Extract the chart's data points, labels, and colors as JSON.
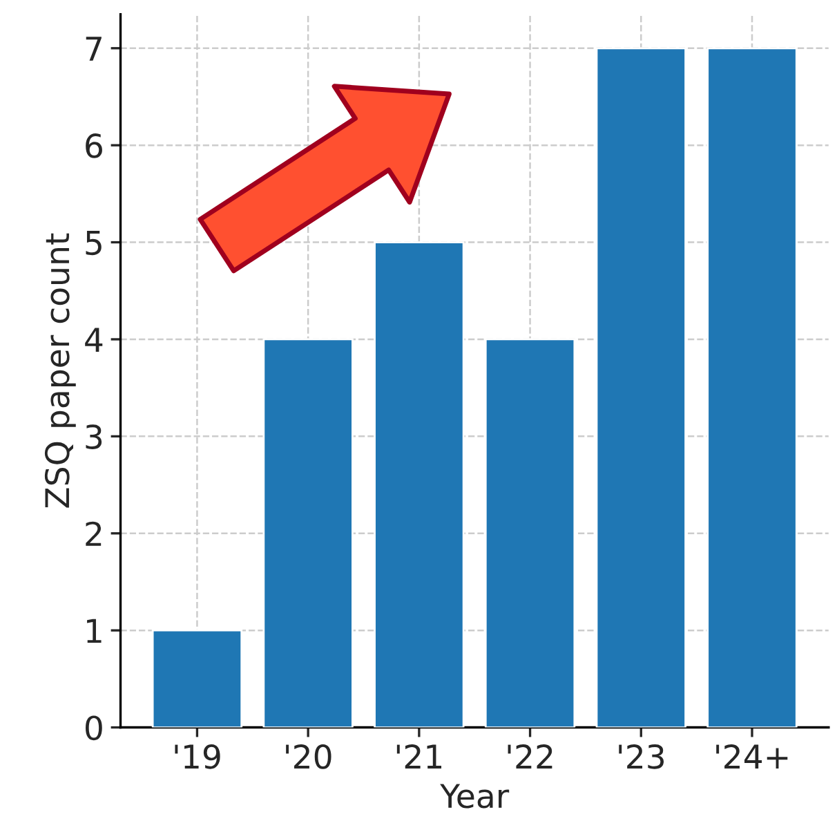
{
  "chart_data": {
    "type": "bar",
    "xlabel": "Year",
    "ylabel": "ZSQ paper count",
    "categories": [
      "'19",
      "'20",
      "'21",
      "'22",
      "'23",
      "'24+"
    ],
    "values": [
      1,
      4,
      5,
      4,
      7,
      7
    ],
    "color": "#1f77b4",
    "ylim": [
      0,
      7.35
    ],
    "yticks": [
      0,
      1,
      2,
      3,
      4,
      5,
      6,
      7
    ],
    "grid": true
  }
}
